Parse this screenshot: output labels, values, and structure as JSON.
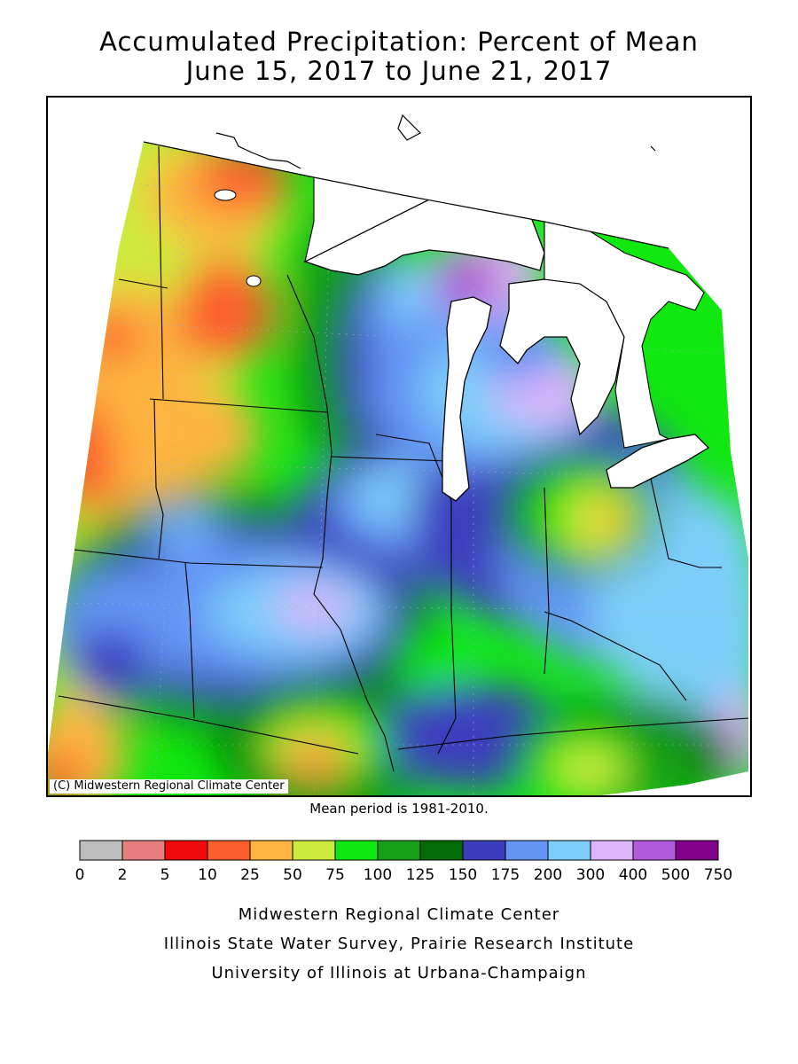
{
  "title": "Accumulated Precipitation: Percent of Mean",
  "subtitle": "June 15, 2017 to June 21, 2017",
  "credit": "(C) Midwestern Regional Climate Center",
  "mean_period": "Mean period is 1981-2010.",
  "legend": {
    "bins": [
      {
        "color": "#bebebe"
      },
      {
        "color": "#e67e7e"
      },
      {
        "color": "#f00a0a"
      },
      {
        "color": "#fc5f2d"
      },
      {
        "color": "#fdb440"
      },
      {
        "color": "#cdeb3c"
      },
      {
        "color": "#10e810"
      },
      {
        "color": "#17a017"
      },
      {
        "color": "#036b03"
      },
      {
        "color": "#3c3cbe"
      },
      {
        "color": "#6495f5"
      },
      {
        "color": "#7dcdfa"
      },
      {
        "color": "#dcb4fa"
      },
      {
        "color": "#b45adc"
      },
      {
        "color": "#82008c"
      }
    ],
    "tick_labels": [
      "0",
      "2",
      "5",
      "10",
      "25",
      "50",
      "75",
      "100",
      "125",
      "150",
      "175",
      "200",
      "300",
      "400",
      "500",
      "750"
    ]
  },
  "footer": {
    "line1": "Midwestern Regional Climate Center",
    "line2": "Illinois State Water Survey, Prairie Research Institute",
    "line3": "University of Illinois at Urbana-Champaign"
  }
}
